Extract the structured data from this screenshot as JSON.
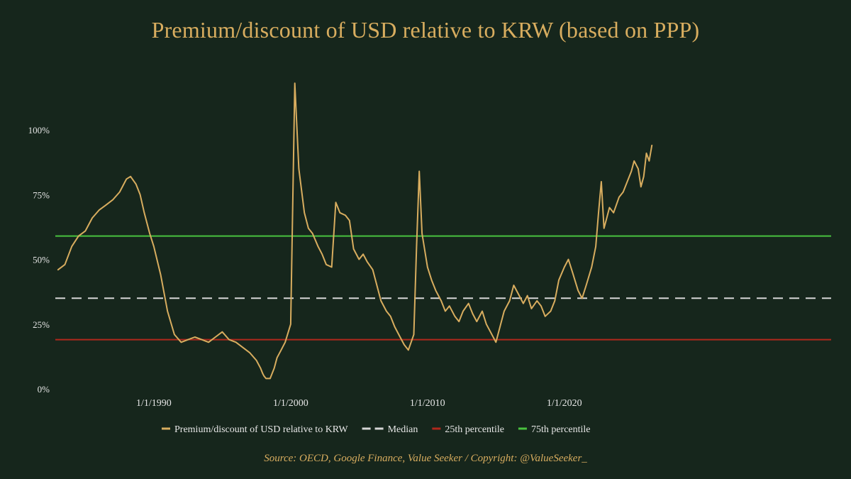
{
  "title": "Premium/discount of USD relative to KRW (based on PPP)",
  "source": "Source: OECD, Google Finance, Value Seeker / Copyright: @ValueSeeker_",
  "colors": {
    "background": "#16261c",
    "series": "#d8ad5f",
    "median": "#d6d6d6",
    "p25": "#b0281c",
    "p75": "#49c23f",
    "text": "#e6e6e6"
  },
  "chart_data": {
    "type": "line",
    "title": "Premium/discount of USD relative to KRW (based on PPP)",
    "xlabel": "",
    "ylabel": "",
    "x_ticks": [
      {
        "year": 1990,
        "label": "1/1/1990"
      },
      {
        "year": 2000,
        "label": "1/1/2000"
      },
      {
        "year": 2010,
        "label": "1/1/2010"
      },
      {
        "year": 2020,
        "label": "1/1/2020"
      }
    ],
    "y_ticks": [
      {
        "value": 0,
        "label": "0%"
      },
      {
        "value": 25,
        "label": "25%"
      },
      {
        "value": 50,
        "label": "50%"
      },
      {
        "value": 75,
        "label": "75%"
      },
      {
        "value": 100,
        "label": "100%"
      }
    ],
    "xlim": [
      1982.8,
      2039.5
    ],
    "ylim": [
      0,
      120
    ],
    "grid": false,
    "legend_position": "bottom",
    "reference_lines": [
      {
        "name": "Median",
        "value": 35,
        "style": "dashed"
      },
      {
        "name": "25th percentile",
        "value": 19,
        "style": "solid"
      },
      {
        "name": "75th percentile",
        "value": 59,
        "style": "solid"
      }
    ],
    "series": [
      {
        "name": "Premium/discount of USD relative to KRW",
        "x": [
          1983.0,
          1983.5,
          1984.0,
          1984.5,
          1985.0,
          1985.5,
          1986.0,
          1986.5,
          1987.0,
          1987.5,
          1988.0,
          1988.3,
          1988.7,
          1989.0,
          1989.3,
          1989.7,
          1990.0,
          1990.5,
          1991.0,
          1991.5,
          1992.0,
          1992.5,
          1993.0,
          1993.5,
          1994.0,
          1994.5,
          1995.0,
          1995.5,
          1996.0,
          1996.5,
          1997.0,
          1997.5,
          1997.8,
          1997.95,
          1998.05,
          1998.2,
          1998.5,
          1998.8,
          1999.0,
          1999.3,
          1999.6,
          2000.0,
          2000.3,
          2000.6,
          2001.0,
          2001.3,
          2001.6,
          2002.0,
          2002.3,
          2002.6,
          2003.0,
          2003.3,
          2003.6,
          2004.0,
          2004.3,
          2004.6,
          2005.0,
          2005.3,
          2005.6,
          2006.0,
          2006.3,
          2006.6,
          2007.0,
          2007.3,
          2007.6,
          2008.0,
          2008.3,
          2008.6,
          2008.8,
          2009.0,
          2009.2,
          2009.4,
          2009.6,
          2010.0,
          2010.3,
          2010.6,
          2011.0,
          2011.3,
          2011.6,
          2012.0,
          2012.3,
          2012.6,
          2013.0,
          2013.3,
          2013.6,
          2014.0,
          2014.3,
          2014.6,
          2015.0,
          2015.3,
          2015.6,
          2016.0,
          2016.3,
          2016.6,
          2017.0,
          2017.3,
          2017.6,
          2018.0,
          2018.3,
          2018.6,
          2019.0,
          2019.3,
          2019.6,
          2020.0,
          2020.3,
          2020.6,
          2021.0,
          2021.3,
          2021.6,
          2022.0,
          2022.3,
          2022.5,
          2022.7,
          2022.9,
          2023.1,
          2023.3,
          2023.6,
          2024.0,
          2024.3,
          2024.6,
          2024.9,
          2025.1,
          2025.4,
          2025.6,
          2025.8,
          2026.0,
          2026.2,
          2026.4
        ],
        "values": [
          46,
          48,
          55,
          59,
          61,
          66,
          69,
          71,
          73,
          76,
          81,
          82,
          79,
          75,
          68,
          60,
          55,
          44,
          30,
          21,
          18,
          19,
          20,
          19,
          18,
          20,
          22,
          19,
          18,
          16,
          14,
          11,
          8,
          6,
          5,
          4,
          4,
          8,
          12,
          15,
          18,
          25,
          118,
          85,
          68,
          62,
          60,
          55,
          52,
          48,
          47,
          72,
          68,
          67,
          65,
          54,
          50,
          52,
          49,
          46,
          40,
          34,
          30,
          28,
          24,
          20,
          17,
          15,
          18,
          21,
          55,
          84,
          60,
          47,
          42,
          38,
          34,
          30,
          32,
          28,
          26,
          30,
          33,
          29,
          26,
          30,
          25,
          22,
          18,
          24,
          30,
          34,
          40,
          37,
          33,
          36,
          31,
          34,
          32,
          28,
          30,
          34,
          42,
          47,
          50,
          45,
          38,
          35,
          40,
          47,
          55,
          68,
          80,
          62,
          66,
          70,
          68,
          74,
          76,
          80,
          84,
          88,
          85,
          78,
          82,
          91,
          88,
          94
        ]
      }
    ]
  },
  "legend": [
    {
      "label": "Premium/discount of USD relative to KRW",
      "key": "series",
      "style": "solid"
    },
    {
      "label": "Median",
      "key": "median",
      "style": "dashed"
    },
    {
      "label": "25th percentile",
      "key": "p25",
      "style": "solid"
    },
    {
      "label": "75th percentile",
      "key": "p75",
      "style": "solid"
    }
  ]
}
